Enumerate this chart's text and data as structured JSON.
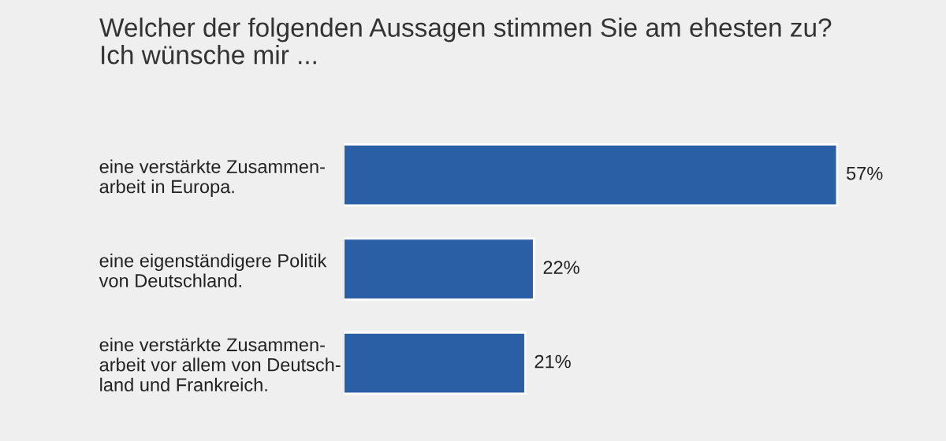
{
  "chart_data": {
    "type": "bar",
    "orientation": "horizontal",
    "title": "Welcher der folgenden Aussagen stimmen Sie am ehesten zu?\nIch wünsche mir ...",
    "categories": [
      "eine verstärkte Zusammen-\narbeit in Europa.",
      "eine eigenständigere Politik\nvon Deutschland.",
      "eine verstärkte Zusammen-\narbeit vor allem von Deutsch-\nland und Frankreich."
    ],
    "values": [
      57,
      22,
      21
    ],
    "color": "#2a5fa5",
    "value_labels": [
      "57%",
      "22%",
      "21%"
    ],
    "grid": false,
    "legend": false
  }
}
